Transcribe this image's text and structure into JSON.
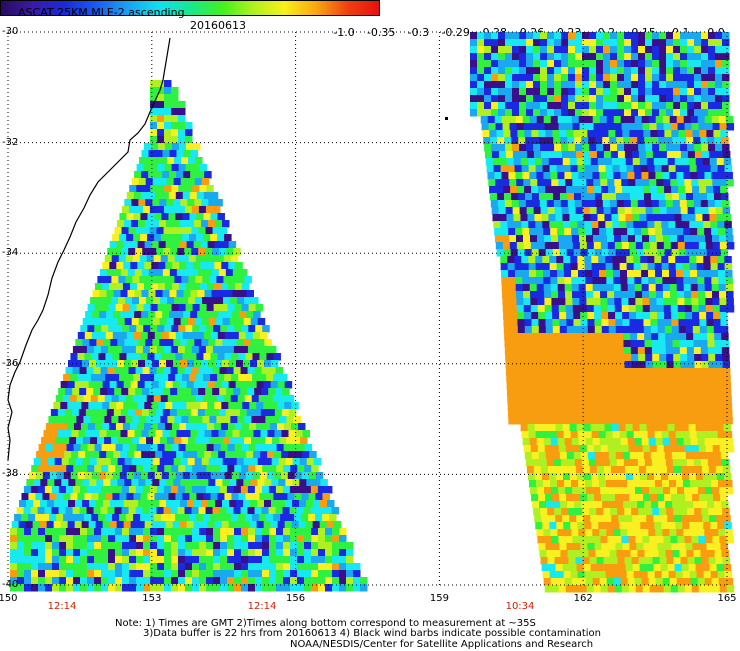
{
  "header": {
    "title": "ASCAT 25KM MLE-2 ascending",
    "date": "20160613"
  },
  "colorbar": {
    "ticks": [
      "-1.0",
      "-0.35",
      "-0.3",
      "-0.29",
      "-0.28",
      "-0.26",
      "-0.23",
      "-0.2",
      "-0.15",
      "-0.1",
      "0.0"
    ],
    "colors": [
      "#2a0a5e",
      "#3a1aa8",
      "#1a2ad6",
      "#1a5af0",
      "#1aa0f0",
      "#10e0f0",
      "#18e890",
      "#40f020",
      "#b0f020",
      "#f8f018",
      "#f8a810",
      "#f04010",
      "#e81010"
    ]
  },
  "axes": {
    "lat_labels": [
      "-30",
      "-32",
      "-34",
      "-36",
      "-38",
      "-40"
    ],
    "lon_labels": [
      "150",
      "153",
      "156",
      "159",
      "162",
      "165"
    ],
    "lat_range": [
      -40,
      -30
    ],
    "lon_range": [
      150,
      165
    ]
  },
  "times": [
    "12:14",
    "12:14",
    "10:34"
  ],
  "notes": {
    "line1": "Note: 1) Times are GMT 2)Times along bottom correspond to measurement at ~35S",
    "line2": "3)Data buffer is 22 hrs from 20160613 4) Black wind barbs indicate possible contamination",
    "line3": "NOAA/NESDIS/Center for Satellite Applications and Research"
  },
  "swath_colors": {
    "deep": "#3a0f8a",
    "blue": "#1a2ae0",
    "lightblue": "#1aa8f0",
    "cyan": "#18e8f0",
    "green": "#30f040",
    "lime": "#b0f020",
    "yellow": "#f8f020",
    "orange": "#f89c10",
    "coast": "#000000"
  }
}
